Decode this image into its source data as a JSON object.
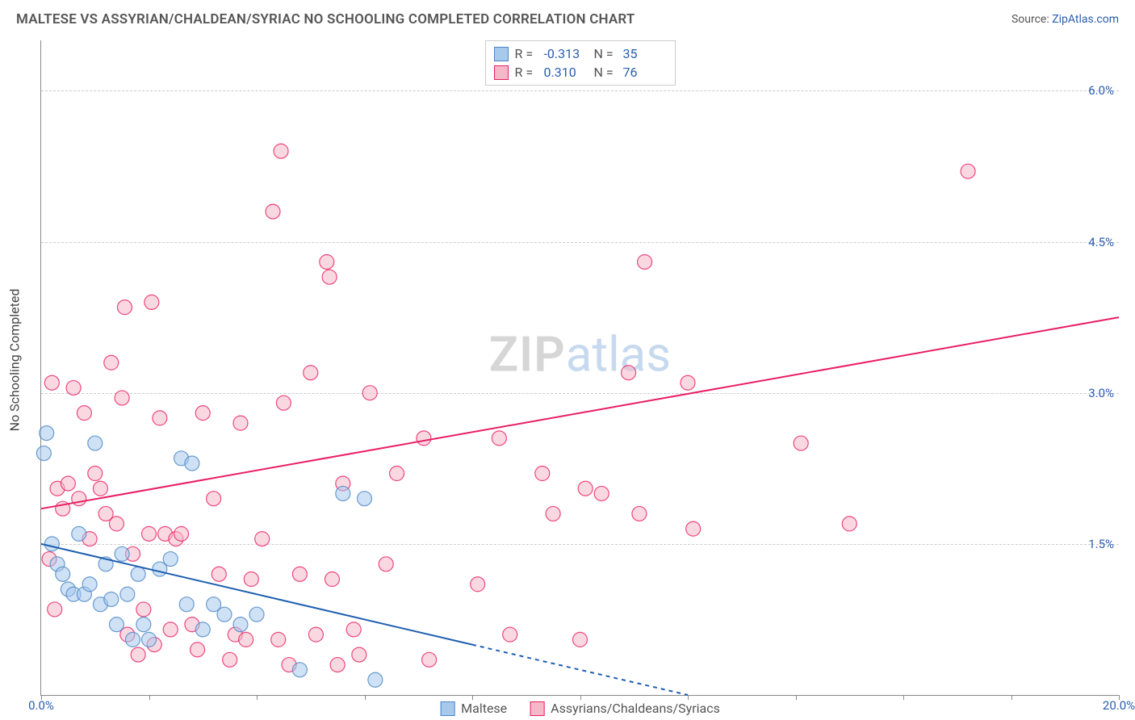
{
  "header": {
    "title": "MALTESE VS ASSYRIAN/CHALDEAN/SYRIAC NO SCHOOLING COMPLETED CORRELATION CHART",
    "source_label": "Source:",
    "source_name": "ZipAtlas.com"
  },
  "chart": {
    "type": "scatter",
    "ylabel": "No Schooling Completed",
    "xlim": [
      0,
      20
    ],
    "ylim": [
      0,
      6.5
    ],
    "xtick_positions": [
      0,
      2,
      4,
      6,
      8,
      10,
      12,
      14,
      16,
      18,
      20
    ],
    "xtick_labels": {
      "0": "0.0%",
      "20": "20.0%"
    },
    "ytick_positions": [
      1.5,
      3.0,
      4.5,
      6.0
    ],
    "ytick_labels": [
      "1.5%",
      "3.0%",
      "4.5%",
      "6.0%"
    ],
    "background_color": "#ffffff",
    "grid_color": "#cccccc",
    "axis_color": "#888888",
    "label_fontsize": 16,
    "tick_fontsize": 15,
    "tick_color": "#2a5db0",
    "marker_radius": 9,
    "marker_opacity": 0.55,
    "marker_stroke_width": 1.2,
    "line_width": 2
  },
  "series": {
    "maltese": {
      "label": "Maltese",
      "color_fill": "#a6c9ec",
      "color_stroke": "#4a84c4",
      "line_color": "#1f5fb0",
      "r": "-0.313",
      "n": "35",
      "trend": {
        "x1": 0,
        "y1": 1.5,
        "x2": 12,
        "y2": 0
      },
      "trend_solid_until_x": 8,
      "points": [
        [
          0.1,
          2.6
        ],
        [
          0.05,
          2.4
        ],
        [
          0.2,
          1.5
        ],
        [
          0.3,
          1.3
        ],
        [
          0.4,
          1.2
        ],
        [
          0.5,
          1.05
        ],
        [
          0.6,
          1.0
        ],
        [
          0.7,
          1.6
        ],
        [
          0.8,
          1.0
        ],
        [
          0.9,
          1.1
        ],
        [
          1.0,
          2.5
        ],
        [
          1.1,
          0.9
        ],
        [
          1.2,
          1.3
        ],
        [
          1.3,
          0.95
        ],
        [
          1.4,
          0.7
        ],
        [
          1.5,
          1.4
        ],
        [
          1.6,
          1.0
        ],
        [
          1.7,
          0.55
        ],
        [
          1.8,
          1.2
        ],
        [
          1.9,
          0.7
        ],
        [
          2.0,
          0.55
        ],
        [
          2.2,
          1.25
        ],
        [
          2.4,
          1.35
        ],
        [
          2.6,
          2.35
        ],
        [
          2.7,
          0.9
        ],
        [
          2.8,
          2.3
        ],
        [
          3.0,
          0.65
        ],
        [
          3.2,
          0.9
        ],
        [
          3.4,
          0.8
        ],
        [
          3.7,
          0.7
        ],
        [
          4.0,
          0.8
        ],
        [
          4.8,
          0.25
        ],
        [
          5.6,
          2.0
        ],
        [
          6.2,
          0.15
        ],
        [
          6.0,
          1.95
        ]
      ]
    },
    "assyrians": {
      "label": "Assyrians/Chaldeans/Syriacs",
      "color_fill": "#f5b8c8",
      "color_stroke": "#e91e63",
      "line_color": "#e91e63",
      "r": "0.310",
      "n": "76",
      "trend": {
        "x1": 0,
        "y1": 1.85,
        "x2": 20,
        "y2": 3.75
      },
      "points": [
        [
          0.2,
          3.1
        ],
        [
          0.3,
          2.05
        ],
        [
          0.4,
          1.85
        ],
        [
          0.5,
          2.1
        ],
        [
          0.6,
          3.05
        ],
        [
          0.7,
          1.95
        ],
        [
          0.8,
          2.8
        ],
        [
          0.9,
          1.55
        ],
        [
          1.0,
          2.2
        ],
        [
          1.1,
          2.05
        ],
        [
          1.2,
          1.8
        ],
        [
          1.3,
          3.3
        ],
        [
          1.4,
          1.7
        ],
        [
          1.5,
          2.95
        ],
        [
          1.55,
          3.85
        ],
        [
          1.6,
          0.6
        ],
        [
          1.7,
          1.4
        ],
        [
          1.8,
          0.4
        ],
        [
          1.9,
          0.85
        ],
        [
          2.0,
          1.6
        ],
        [
          2.05,
          3.9
        ],
        [
          2.1,
          0.5
        ],
        [
          2.2,
          2.75
        ],
        [
          2.3,
          1.6
        ],
        [
          2.4,
          0.65
        ],
        [
          2.5,
          1.55
        ],
        [
          2.6,
          1.6
        ],
        [
          2.8,
          0.7
        ],
        [
          2.9,
          0.45
        ],
        [
          3.0,
          2.8
        ],
        [
          3.2,
          1.95
        ],
        [
          3.3,
          1.2
        ],
        [
          3.5,
          0.35
        ],
        [
          3.6,
          0.6
        ],
        [
          3.7,
          2.7
        ],
        [
          3.8,
          0.55
        ],
        [
          3.9,
          1.15
        ],
        [
          4.1,
          1.55
        ],
        [
          4.3,
          4.8
        ],
        [
          4.4,
          0.55
        ],
        [
          4.45,
          5.4
        ],
        [
          4.5,
          2.9
        ],
        [
          4.6,
          0.3
        ],
        [
          4.8,
          1.2
        ],
        [
          5.0,
          3.2
        ],
        [
          5.1,
          0.6
        ],
        [
          5.3,
          4.3
        ],
        [
          5.35,
          4.15
        ],
        [
          5.4,
          1.15
        ],
        [
          5.5,
          0.3
        ],
        [
          5.6,
          2.1
        ],
        [
          5.8,
          0.65
        ],
        [
          5.9,
          0.4
        ],
        [
          6.1,
          3.0
        ],
        [
          6.4,
          1.3
        ],
        [
          6.6,
          2.2
        ],
        [
          7.1,
          2.55
        ],
        [
          7.2,
          0.35
        ],
        [
          8.1,
          1.1
        ],
        [
          8.5,
          2.55
        ],
        [
          8.7,
          0.6
        ],
        [
          9.3,
          2.2
        ],
        [
          9.5,
          1.8
        ],
        [
          10.0,
          0.55
        ],
        [
          10.1,
          2.05
        ],
        [
          10.4,
          2.0
        ],
        [
          10.9,
          3.2
        ],
        [
          11.1,
          1.8
        ],
        [
          11.2,
          4.3
        ],
        [
          12.0,
          3.1
        ],
        [
          12.1,
          1.65
        ],
        [
          14.1,
          2.5
        ],
        [
          15.0,
          1.7
        ],
        [
          17.2,
          5.2
        ],
        [
          0.15,
          1.35
        ],
        [
          0.25,
          0.85
        ]
      ]
    }
  },
  "legend_top": {
    "r_label": "R =",
    "n_label": "N ="
  },
  "watermark": {
    "part1": "ZIP",
    "part2": "atlas"
  }
}
